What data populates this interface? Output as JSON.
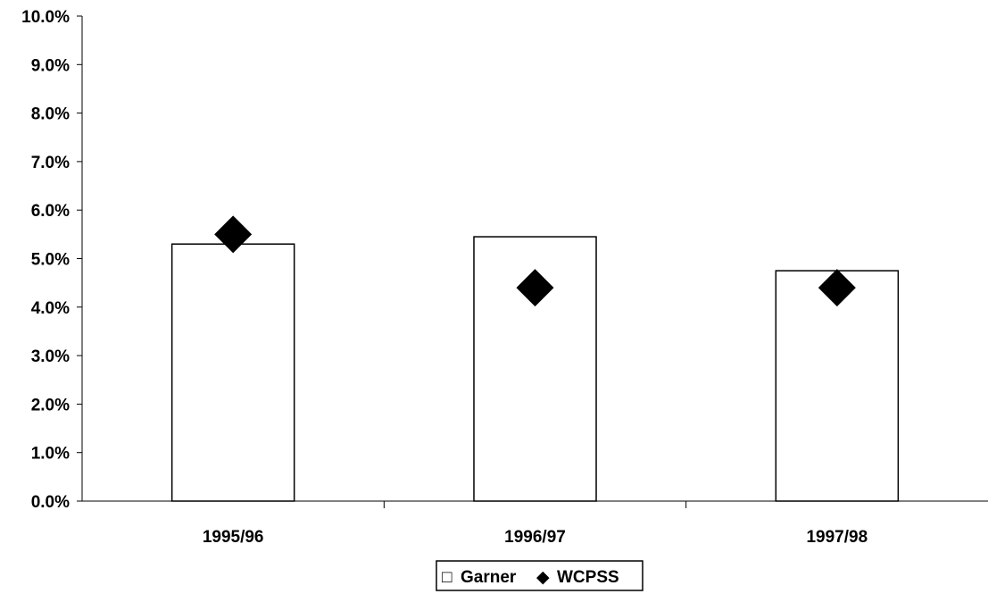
{
  "chart_data": {
    "type": "bar",
    "categories": [
      "1995/96",
      "1996/97",
      "1997/98"
    ],
    "series": [
      {
        "name": "Garner",
        "kind": "bar",
        "values": [
          5.3,
          5.45,
          4.75
        ],
        "color": "#ffffff",
        "stroke": "#000000"
      },
      {
        "name": "WCPSS",
        "kind": "marker",
        "marker": "diamond",
        "values": [
          5.5,
          4.4,
          4.4
        ],
        "color": "#000000"
      }
    ],
    "ylim": [
      0,
      10
    ],
    "yticks": [
      "0.0%",
      "1.0%",
      "2.0%",
      "3.0%",
      "4.0%",
      "5.0%",
      "6.0%",
      "7.0%",
      "8.0%",
      "9.0%",
      "10.0%"
    ],
    "title": "",
    "xlabel": "",
    "ylabel": "",
    "grid": false,
    "legend": {
      "placement": "bottom-center",
      "items": [
        {
          "label": "Garner",
          "symbol": "□"
        },
        {
          "label": "WCPSS",
          "symbol": "◆"
        }
      ]
    }
  }
}
